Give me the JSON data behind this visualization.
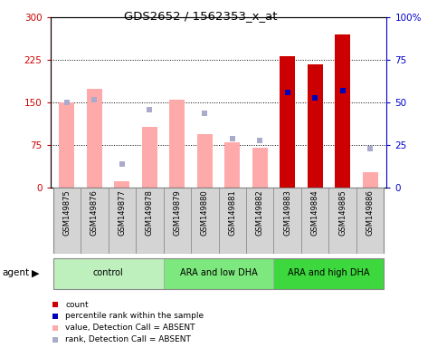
{
  "title": "GDS2652 / 1562353_x_at",
  "samples": [
    "GSM149875",
    "GSM149876",
    "GSM149877",
    "GSM149878",
    "GSM149879",
    "GSM149880",
    "GSM149881",
    "GSM149882",
    "GSM149883",
    "GSM149884",
    "GSM149885",
    "GSM149886"
  ],
  "groups": [
    {
      "label": "control",
      "start": 0,
      "end": 3,
      "color": "#bef0be"
    },
    {
      "label": "ARA and low DHA",
      "start": 4,
      "end": 7,
      "color": "#7de87d"
    },
    {
      "label": "ARA and high DHA",
      "start": 8,
      "end": 11,
      "color": "#3dd83d"
    }
  ],
  "bar_values": [
    150,
    175,
    12,
    108,
    155,
    95,
    80,
    70,
    232,
    218,
    270,
    28
  ],
  "bar_absent": [
    true,
    true,
    true,
    true,
    true,
    true,
    true,
    true,
    false,
    false,
    false,
    true
  ],
  "rank_values": [
    50,
    52,
    14,
    46,
    null,
    44,
    29,
    28,
    56,
    53,
    57,
    23
  ],
  "rank_absent": [
    true,
    true,
    true,
    true,
    false,
    true,
    true,
    true,
    false,
    false,
    false,
    true
  ],
  "ylim_left": [
    0,
    300
  ],
  "ylim_right": [
    0,
    100
  ],
  "yticks_left": [
    0,
    75,
    150,
    225,
    300
  ],
  "yticks_right": [
    0,
    25,
    50,
    75,
    100
  ],
  "color_bar_present": "#cc0000",
  "color_bar_absent": "#ffaaaa",
  "color_rank_present": "#0000bb",
  "color_rank_absent": "#aaaacc",
  "bg_color": "#ffffff",
  "plot_bg": "#ffffff",
  "axis_left_color": "#cc0000",
  "axis_right_color": "#0000cc",
  "agent_label": "agent",
  "bar_width": 0.55,
  "cell_color": "#d4d4d4",
  "cell_border": "#888888"
}
